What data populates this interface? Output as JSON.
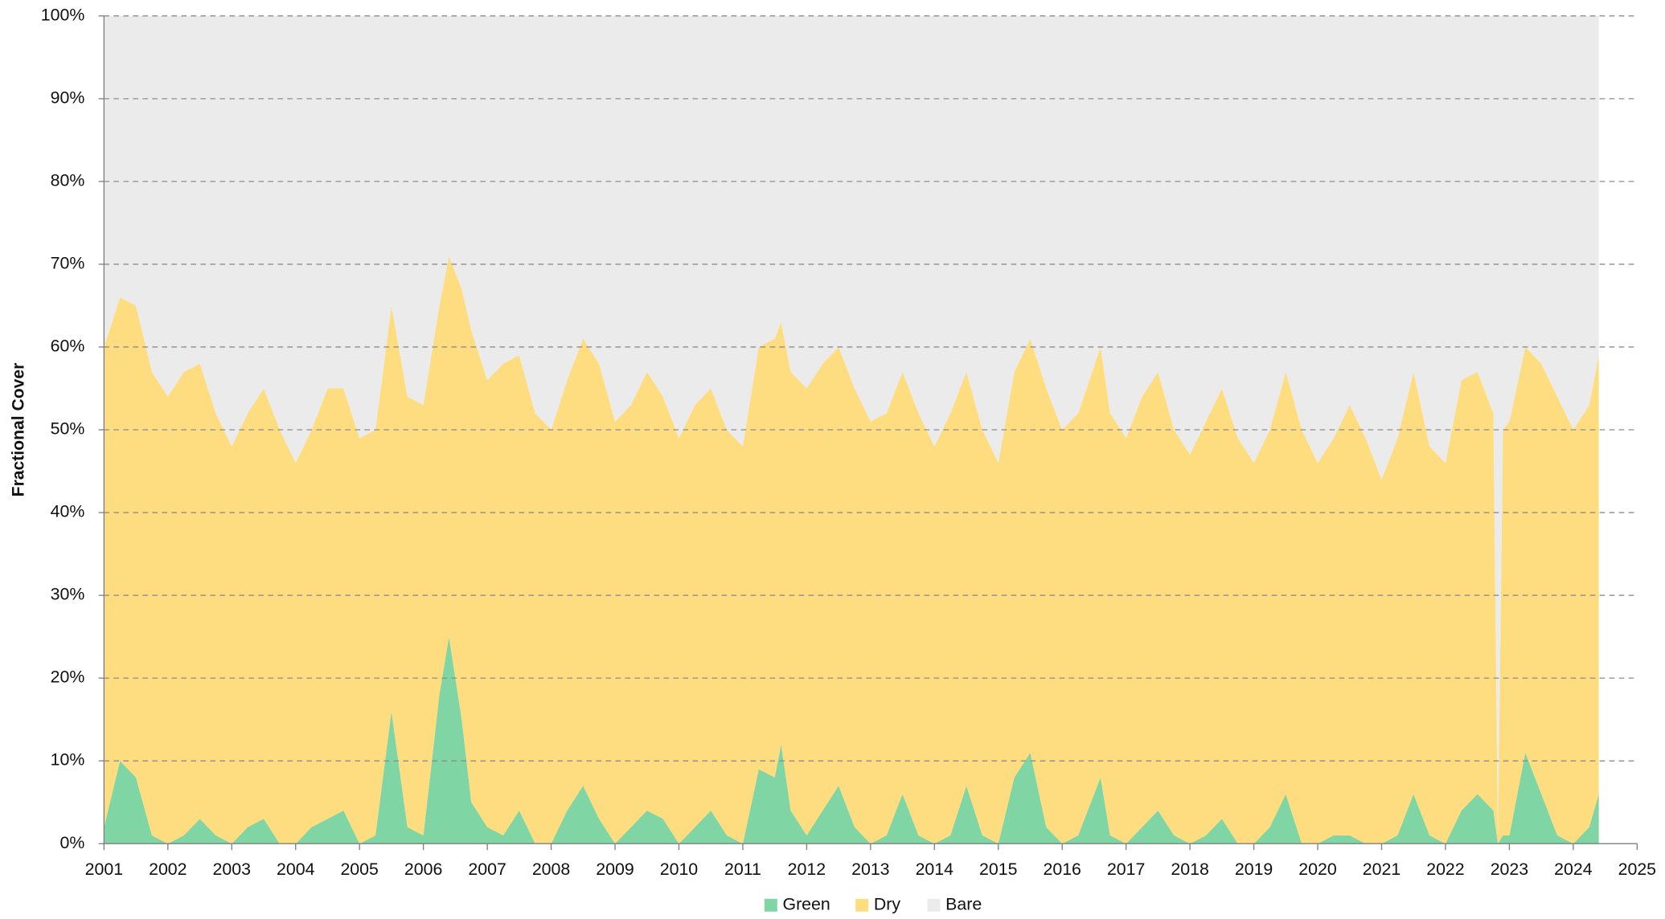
{
  "chart_data": {
    "type": "stacked_area",
    "y_label": "Fractional Cover",
    "x": [
      2001,
      2001.25,
      2001.5,
      2001.75,
      2002,
      2002.25,
      2002.5,
      2002.75,
      2003,
      2003.25,
      2003.5,
      2003.75,
      2004,
      2004.25,
      2004.5,
      2004.75,
      2005,
      2005.25,
      2005.5,
      2005.75,
      2006,
      2006.25,
      2006.4,
      2006.6,
      2006.75,
      2007,
      2007.25,
      2007.5,
      2007.75,
      2008,
      2008.25,
      2008.5,
      2008.75,
      2009,
      2009.25,
      2009.5,
      2009.75,
      2010,
      2010.25,
      2010.5,
      2010.75,
      2011,
      2011.25,
      2011.5,
      2011.6,
      2011.75,
      2012,
      2012.25,
      2012.5,
      2012.75,
      2013,
      2013.25,
      2013.5,
      2013.75,
      2014,
      2014.25,
      2014.5,
      2014.75,
      2015,
      2015.25,
      2015.5,
      2015.75,
      2016,
      2016.25,
      2016.6,
      2016.75,
      2017,
      2017.25,
      2017.5,
      2017.75,
      2018,
      2018.25,
      2018.5,
      2018.75,
      2019,
      2019.25,
      2019.5,
      2019.75,
      2020,
      2020.25,
      2020.5,
      2020.75,
      2021,
      2021.25,
      2021.5,
      2021.75,
      2022,
      2022.25,
      2022.5,
      2022.75,
      2022.82,
      2022.9,
      2023,
      2023.25,
      2023.5,
      2023.75,
      2024,
      2024.25,
      2024.4
    ],
    "series": [
      {
        "name": "Green",
        "color": "#7fd6a4",
        "values": [
          2,
          10,
          8,
          1,
          0,
          1,
          3,
          1,
          0,
          2,
          3,
          0,
          0,
          2,
          3,
          4,
          0,
          1,
          16,
          2,
          1,
          18,
          25,
          15,
          5,
          2,
          1,
          4,
          0,
          0,
          4,
          7,
          3,
          0,
          2,
          4,
          3,
          0,
          2,
          4,
          1,
          0,
          9,
          8,
          12,
          4,
          1,
          4,
          7,
          2,
          0,
          1,
          6,
          1,
          0,
          1,
          7,
          1,
          0,
          8,
          11,
          2,
          0,
          1,
          8,
          1,
          0,
          2,
          4,
          1,
          0,
          1,
          3,
          0,
          0,
          2,
          6,
          0,
          0,
          1,
          1,
          0,
          0,
          1,
          6,
          1,
          0,
          4,
          6,
          4,
          0,
          1,
          1,
          11,
          6,
          1,
          0,
          2,
          6
        ]
      },
      {
        "name": "Dry",
        "color": "#fedd80",
        "values": [
          58,
          56,
          57,
          56,
          54,
          56,
          55,
          51,
          48,
          50,
          52,
          50,
          46,
          48,
          52,
          51,
          49,
          49,
          49,
          52,
          52,
          47,
          46,
          52,
          57,
          54,
          57,
          55,
          52,
          50,
          52,
          54,
          55,
          51,
          51,
          53,
          51,
          49,
          51,
          51,
          49,
          48,
          51,
          53,
          51,
          53,
          54,
          54,
          53,
          53,
          51,
          51,
          51,
          51,
          48,
          51,
          50,
          49,
          46,
          49,
          50,
          53,
          50,
          51,
          52,
          51,
          49,
          52,
          53,
          49,
          47,
          50,
          52,
          49,
          46,
          48,
          51,
          50,
          46,
          48,
          52,
          49,
          44,
          48,
          51,
          47,
          46,
          52,
          51,
          48,
          1,
          49,
          50,
          49,
          52,
          53,
          50,
          51,
          53
        ]
      },
      {
        "name": "Bare",
        "color": "#ebebeb",
        "values": [
          40,
          34,
          35,
          43,
          46,
          43,
          42,
          48,
          52,
          48,
          45,
          50,
          54,
          50,
          45,
          45,
          51,
          50,
          35,
          46,
          47,
          35,
          29,
          33,
          38,
          44,
          42,
          41,
          48,
          50,
          44,
          39,
          42,
          49,
          47,
          43,
          46,
          51,
          47,
          45,
          50,
          52,
          40,
          39,
          37,
          43,
          45,
          42,
          40,
          45,
          49,
          48,
          43,
          48,
          52,
          48,
          43,
          50,
          54,
          43,
          39,
          45,
          50,
          48,
          40,
          48,
          51,
          46,
          43,
          50,
          53,
          49,
          45,
          51,
          54,
          50,
          43,
          50,
          54,
          51,
          47,
          51,
          56,
          51,
          43,
          52,
          54,
          44,
          43,
          48,
          99,
          50,
          49,
          40,
          42,
          46,
          50,
          47,
          41
        ]
      }
    ],
    "xlim": [
      2001,
      2025
    ],
    "xticks": [
      2001,
      2002,
      2003,
      2004,
      2005,
      2006,
      2007,
      2008,
      2009,
      2010,
      2011,
      2012,
      2013,
      2014,
      2015,
      2016,
      2017,
      2018,
      2019,
      2020,
      2021,
      2022,
      2023,
      2024,
      2025
    ],
    "ylim": [
      0,
      100
    ],
    "yticks": [
      {
        "value": 0,
        "label": "0%"
      },
      {
        "value": 10,
        "label": "10%"
      },
      {
        "value": 20,
        "label": "20%"
      },
      {
        "value": 30,
        "label": "30%"
      },
      {
        "value": 40,
        "label": "40%"
      },
      {
        "value": 50,
        "label": "50%"
      },
      {
        "value": 60,
        "label": "60%"
      },
      {
        "value": 70,
        "label": "70%"
      },
      {
        "value": 80,
        "label": "80%"
      },
      {
        "value": 90,
        "label": "90%"
      },
      {
        "value": 100,
        "label": "100%"
      }
    ],
    "grid": true,
    "legend": "bottom"
  }
}
